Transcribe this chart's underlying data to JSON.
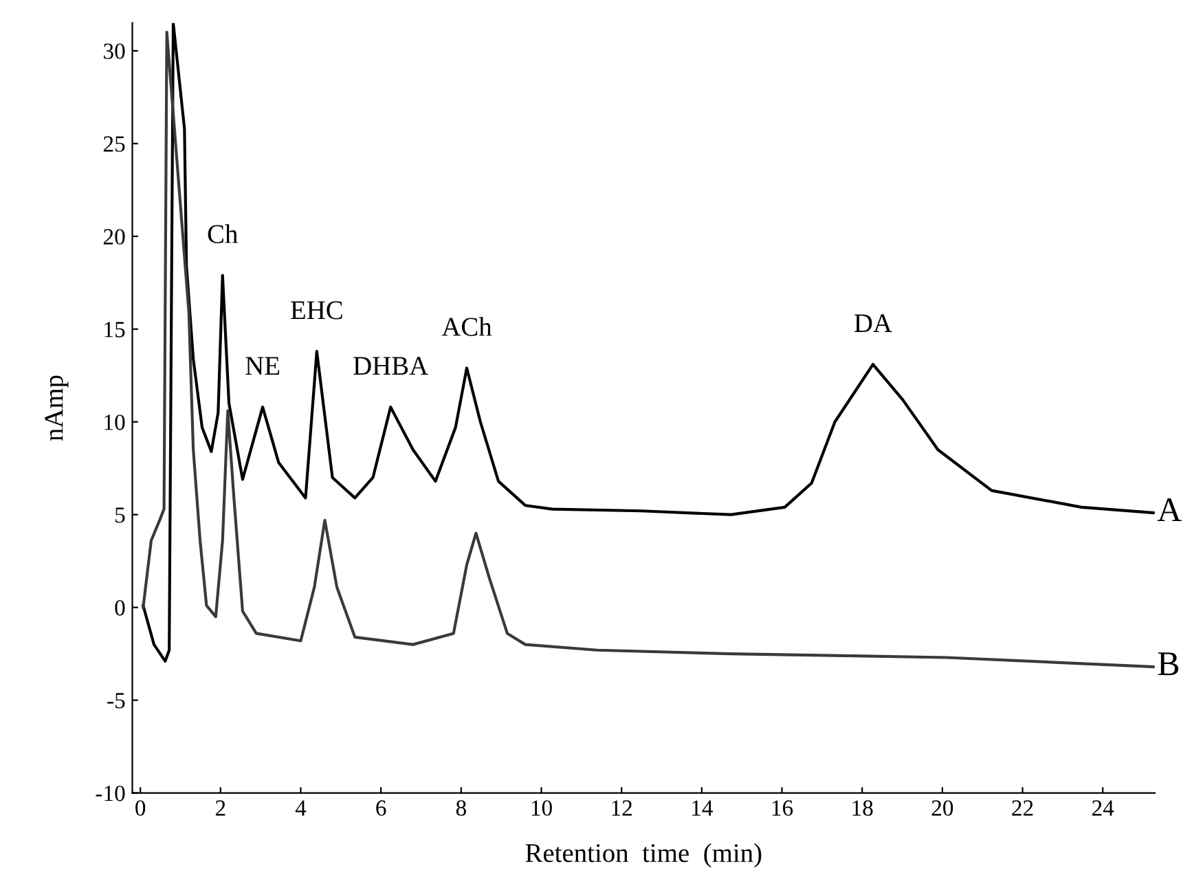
{
  "chart_data": {
    "type": "line",
    "xlabel": "Retention  time  (min)",
    "ylabel": "nAmp",
    "xlim": [
      -0.2,
      25.3
    ],
    "ylim": [
      -10,
      31.5
    ],
    "xticks": [
      0,
      2,
      4,
      6,
      8,
      10,
      12,
      14,
      16,
      18,
      20,
      22,
      24
    ],
    "yticks": [
      -10,
      -5,
      0,
      5,
      10,
      15,
      20,
      25,
      30
    ],
    "grid": false,
    "legend": false,
    "marker": "none",
    "line_style": "solid",
    "series": [
      {
        "name": "A",
        "color": "#000000",
        "x": [
          0.07,
          0.34,
          0.62,
          0.72,
          0.82,
          1.1,
          1.15,
          1.32,
          1.54,
          1.77,
          1.94,
          2.05,
          2.21,
          2.55,
          3.05,
          3.45,
          4.12,
          4.4,
          4.79,
          5.35,
          5.8,
          6.24,
          6.8,
          7.36,
          7.86,
          8.14,
          8.48,
          8.93,
          9.6,
          10.27,
          12.5,
          14.73,
          16.07,
          16.74,
          17.32,
          18.27,
          19.01,
          19.89,
          21.23,
          23.47,
          25.26
        ],
        "values": [
          0.1,
          -2.0,
          -2.9,
          -2.3,
          31.5,
          25.8,
          18.4,
          13.4,
          9.7,
          8.4,
          10.5,
          17.9,
          11.0,
          6.9,
          10.8,
          7.8,
          5.9,
          13.8,
          7.0,
          5.9,
          7.0,
          10.8,
          8.5,
          6.8,
          9.7,
          12.9,
          10.0,
          6.8,
          5.5,
          5.3,
          5.2,
          5.0,
          5.4,
          6.7,
          10.0,
          13.1,
          11.2,
          8.5,
          6.3,
          5.4,
          5.1
        ]
      },
      {
        "name": "B",
        "color": "#3a3a3a",
        "x": [
          0.07,
          0.27,
          0.5,
          0.59,
          0.66,
          1.21,
          1.32,
          1.49,
          1.65,
          1.88,
          2.05,
          2.18,
          2.33,
          2.55,
          2.89,
          4.0,
          4.34,
          4.6,
          4.9,
          5.35,
          6.8,
          7.81,
          8.14,
          8.37,
          8.7,
          9.15,
          9.6,
          11.39,
          14.73,
          20.1,
          25.26
        ],
        "values": [
          0.0,
          3.6,
          4.8,
          5.3,
          31.0,
          15.9,
          8.5,
          3.6,
          0.1,
          -0.5,
          3.6,
          10.6,
          6.0,
          -0.2,
          -1.4,
          -1.8,
          1.1,
          4.7,
          1.1,
          -1.6,
          -2.0,
          -1.4,
          2.3,
          4.0,
          1.6,
          -1.4,
          -2.0,
          -2.3,
          -2.5,
          -2.7,
          -3.2
        ]
      }
    ],
    "annotations": [
      {
        "text": "Ch",
        "x": 2.05,
        "y": 17.9
      },
      {
        "text": "NE",
        "x": 3.05,
        "y": 10.8
      },
      {
        "text": "EHC",
        "x": 4.4,
        "y": 13.8
      },
      {
        "text": "DHBA",
        "x": 6.24,
        "y": 10.8
      },
      {
        "text": "ACh",
        "x": 8.14,
        "y": 12.9
      },
      {
        "text": "DA",
        "x": 18.27,
        "y": 13.1
      }
    ]
  }
}
